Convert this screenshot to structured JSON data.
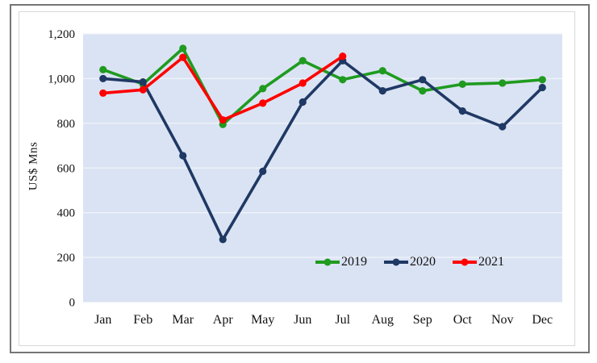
{
  "chart_data": {
    "type": "line",
    "title": "",
    "xlabel": "",
    "ylabel": "US$ Mns",
    "categories": [
      "Jan",
      "Feb",
      "Mar",
      "Apr",
      "May",
      "Jun",
      "Jul",
      "Aug",
      "Sep",
      "Oct",
      "Nov",
      "Dec"
    ],
    "y_tick_values": [
      0,
      200,
      400,
      600,
      800,
      1000,
      1200
    ],
    "y_tick_labels": [
      "0",
      "200",
      "400",
      "600",
      "800",
      "1,000",
      "1,200"
    ],
    "ylim": [
      0,
      1200
    ],
    "grid": "on",
    "legend_position": "inside-bottom-right",
    "plot_bg_color": "#dae3f3",
    "gridline_color": "#eff3fa",
    "series": [
      {
        "name": "2019",
        "color": "#1f9b1f",
        "values": [
          1040,
          975,
          1135,
          795,
          955,
          1080,
          995,
          1035,
          945,
          975,
          980,
          995
        ]
      },
      {
        "name": "2020",
        "color": "#1f3864",
        "values": [
          1000,
          985,
          655,
          280,
          585,
          895,
          1080,
          945,
          995,
          855,
          785,
          960
        ]
      },
      {
        "name": "2021",
        "color": "#fe0000",
        "values": [
          935,
          950,
          1095,
          815,
          890,
          980,
          1100
        ]
      }
    ]
  }
}
